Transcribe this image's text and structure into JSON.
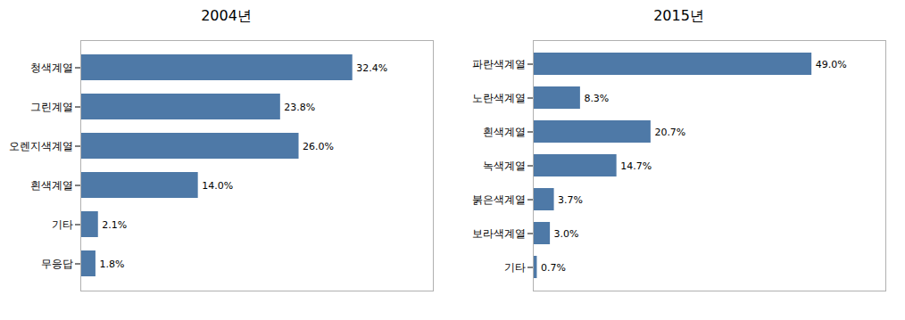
{
  "chart_data": [
    {
      "type": "bar",
      "orientation": "horizontal",
      "title": "2004년",
      "categories": [
        "청색계열",
        "그린계열",
        "오렌지색계열",
        "흰색계열",
        "기타",
        "무응답"
      ],
      "values": [
        32.4,
        23.8,
        26.0,
        14.0,
        2.1,
        1.8
      ],
      "value_labels": [
        "32.4%",
        "23.8%",
        "26.0%",
        "14.0%",
        "2.1%",
        "1.8%"
      ],
      "color": "#4e79a7",
      "xlim": [
        0,
        42
      ],
      "data_labels": true,
      "tick_labels": "y",
      "grid": false
    },
    {
      "type": "bar",
      "orientation": "horizontal",
      "title": "2015년",
      "categories": [
        "파란색계열",
        "노란색계열",
        "흰색계열",
        "녹색계열",
        "붉은색계열",
        "보라색계열",
        "기타"
      ],
      "values": [
        49.0,
        8.3,
        20.7,
        14.7,
        3.7,
        3.0,
        0.7
      ],
      "value_labels": [
        "49.0%",
        "8.3%",
        "20.7%",
        "14.7%",
        "3.7%",
        "3.0%",
        "0.7%"
      ],
      "color": "#4e79a7",
      "xlim": [
        0,
        62
      ],
      "data_labels": true,
      "tick_labels": "y",
      "grid": false
    }
  ]
}
